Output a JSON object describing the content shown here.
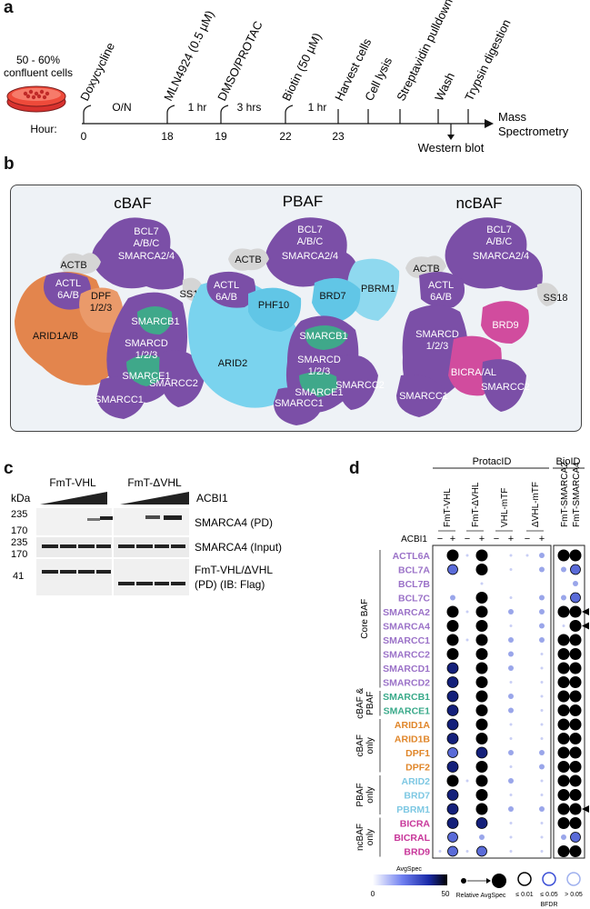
{
  "panels": {
    "a": "a",
    "b": "b",
    "c": "c",
    "d": "d"
  },
  "panel_a": {
    "cells_label": "50 - 60%\nconfluent cells",
    "hour_label": "Hour:",
    "steps": [
      {
        "label": "Doxycycline",
        "hour": "0"
      },
      {
        "label": "MLN4924 (0.5 µM)",
        "hour": "18"
      },
      {
        "label": "DMSO/PROTAC",
        "hour": "19"
      },
      {
        "label": "Biotin (50 µM)",
        "hour": "22"
      },
      {
        "label": "Harvest cells",
        "hour": "23"
      },
      {
        "label": "Cell lysis",
        "hour": ""
      },
      {
        "label": "Streptavidin pulldown",
        "hour": ""
      },
      {
        "label": "Wash",
        "hour": ""
      },
      {
        "label": "Trypsin digestion",
        "hour": ""
      }
    ],
    "intervals": [
      "O/N",
      "1 hr",
      "3 hrs",
      "1 hr"
    ],
    "end_label": "Mass\nSpectrometry",
    "branch_label": "Western blot"
  },
  "panel_b": {
    "complexes": [
      "cBAF",
      "PBAF",
      "ncBAF"
    ],
    "cbaf": [
      "BCL7\nA/B/C",
      "ACTB",
      "SMARCA2/4",
      "SS18",
      "ACTL\n6A/B",
      "DPF\n1/2/3",
      "ARID1A/B",
      "SMARCB1",
      "SMARCD\n1/2/3",
      "SMARCE1",
      "SMARCC2",
      "SMARCC1"
    ],
    "pbaf": [
      "BCL7\nA/B/C",
      "ACTB",
      "SMARCA2/4",
      "PBRM1",
      "ACTL\n6A/B",
      "BRD7",
      "PHF10",
      "ARID2",
      "SMARCB1",
      "SMARCD\n1/2/3",
      "SMARCE1",
      "SMARCC2",
      "SMARCC1"
    ],
    "ncbaf": [
      "BCL7\nA/B/C",
      "ACTB",
      "SMARCA2/4",
      "SS18",
      "ACTL\n6A/B",
      "SMARCD\n1/2/3",
      "BRD9",
      "BICRA/AL",
      "SMARCC2",
      "SMARCC1"
    ]
  },
  "panel_c": {
    "groups": [
      "FmT-VHL",
      "FmT-ΔVHL"
    ],
    "treatment": "ACBI1",
    "kda_label": "kDa",
    "markers": [
      "235",
      "170",
      "235",
      "170",
      "41"
    ],
    "blot_labels": [
      "SMARCA4 (PD)",
      "SMARCA4 (Input)",
      "FmT-VHL/ΔVHL\n(PD) (IB: Flag)"
    ]
  },
  "panel_d": {
    "method_headers": [
      "ProtacID",
      "BioID"
    ],
    "columns": [
      "FmT-VHL",
      "FmT-ΔVHL",
      "VHL-mTF",
      "ΔVHL-mTF",
      "FmT-SMARCA2",
      "FmT-SMARCA4"
    ],
    "acbi1_label": "ACBI1",
    "signs": [
      "−",
      "+"
    ],
    "proteins": [
      {
        "name": "ACTL6A",
        "color": "#9b72c8"
      },
      {
        "name": "BCL7A",
        "color": "#9b72c8"
      },
      {
        "name": "BCL7B",
        "color": "#9b72c8"
      },
      {
        "name": "BCL7C",
        "color": "#9b72c8"
      },
      {
        "name": "SMARCA2",
        "color": "#9b72c8"
      },
      {
        "name": "SMARCA4",
        "color": "#9b72c8"
      },
      {
        "name": "SMARCC1",
        "color": "#9b72c8"
      },
      {
        "name": "SMARCC2",
        "color": "#9b72c8"
      },
      {
        "name": "SMARCD1",
        "color": "#9b72c8"
      },
      {
        "name": "SMARCD2",
        "color": "#9b72c8"
      },
      {
        "name": "SMARCB1",
        "color": "#3aaa8a"
      },
      {
        "name": "SMARCE1",
        "color": "#3aaa8a"
      },
      {
        "name": "ARID1A",
        "color": "#e0862a"
      },
      {
        "name": "ARID1B",
        "color": "#e0862a"
      },
      {
        "name": "DPF1",
        "color": "#e0862a"
      },
      {
        "name": "DPF2",
        "color": "#e0862a"
      },
      {
        "name": "ARID2",
        "color": "#7ec8e3"
      },
      {
        "name": "BRD7",
        "color": "#7ec8e3"
      },
      {
        "name": "PBRM1",
        "color": "#7ec8e3"
      },
      {
        "name": "BICRA",
        "color": "#c8379a"
      },
      {
        "name": "BICRAL",
        "color": "#c8379a"
      },
      {
        "name": "BRD9",
        "color": "#c8379a"
      }
    ],
    "groups": [
      {
        "label": "Core BAF"
      },
      {
        "label": "cBAF &\nPBAF"
      },
      {
        "label": "cBAF\nonly"
      },
      {
        "label": "PBAF\nonly"
      },
      {
        "label": "ncBAF\nonly"
      }
    ],
    "arrow_rows": [
      "SMARCA2",
      "SMARCA4",
      "PBRM1"
    ],
    "legend": {
      "avgspec_title": "AvgSpec",
      "scale_min": "0",
      "scale_max": "50",
      "size_label": "Relative AvgSpec",
      "bfdr_labels": [
        "≤ 0.01",
        "≤ 0.05",
        "> 0.05"
      ],
      "bfdr_title": "BFDR"
    }
  }
}
